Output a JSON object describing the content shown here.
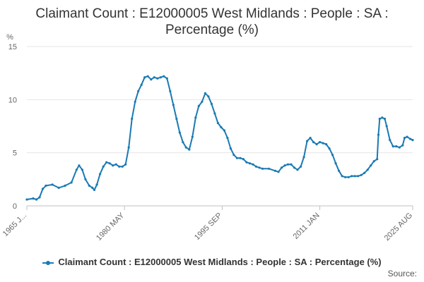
{
  "chart_data": {
    "type": "line",
    "title_line1": "Claimant Count : E12000005 West Midlands : People : SA :",
    "title_line2": "Percentage (%)",
    "ylabel": "%",
    "ylim": [
      0,
      15
    ],
    "yticks": [
      0,
      5,
      10,
      15
    ],
    "xticks": [
      "1965 J...",
      "1980 MAY",
      "1995 SEP",
      "2011 JAN",
      "2025 AUG"
    ],
    "xtick_years": [
      1965.0,
      1980.33,
      1995.67,
      2011.0,
      2025.58
    ],
    "xlim": [
      1965.0,
      2025.58
    ],
    "grid": true,
    "legend_position": "bottom",
    "series": [
      {
        "name": "Claimant Count : E12000005 West Midlands : People : SA : Percentage (%)",
        "color": "#1a7ab3",
        "points": [
          [
            1965.0,
            0.6
          ],
          [
            1966.0,
            0.7
          ],
          [
            1966.5,
            0.6
          ],
          [
            1967.0,
            0.8
          ],
          [
            1967.5,
            1.6
          ],
          [
            1968.0,
            1.9
          ],
          [
            1969.0,
            2.0
          ],
          [
            1970.0,
            1.7
          ],
          [
            1971.0,
            1.9
          ],
          [
            1972.0,
            2.2
          ],
          [
            1972.8,
            3.4
          ],
          [
            1973.2,
            3.8
          ],
          [
            1973.7,
            3.4
          ],
          [
            1974.2,
            2.5
          ],
          [
            1974.8,
            1.9
          ],
          [
            1975.3,
            1.7
          ],
          [
            1975.6,
            1.5
          ],
          [
            1976.0,
            2.0
          ],
          [
            1976.5,
            3.0
          ],
          [
            1977.0,
            3.7
          ],
          [
            1977.5,
            4.1
          ],
          [
            1978.0,
            4.0
          ],
          [
            1978.5,
            3.8
          ],
          [
            1979.0,
            3.9
          ],
          [
            1979.5,
            3.7
          ],
          [
            1980.0,
            3.7
          ],
          [
            1980.5,
            3.9
          ],
          [
            1981.0,
            5.5
          ],
          [
            1981.5,
            8.2
          ],
          [
            1982.0,
            9.8
          ],
          [
            1982.5,
            10.8
          ],
          [
            1983.0,
            11.4
          ],
          [
            1983.5,
            12.1
          ],
          [
            1984.0,
            12.2
          ],
          [
            1984.5,
            11.9
          ],
          [
            1985.0,
            12.1
          ],
          [
            1985.5,
            12.0
          ],
          [
            1986.0,
            12.1
          ],
          [
            1986.5,
            12.2
          ],
          [
            1987.0,
            12.0
          ],
          [
            1987.5,
            10.8
          ],
          [
            1988.0,
            9.5
          ],
          [
            1988.5,
            8.2
          ],
          [
            1989.0,
            6.9
          ],
          [
            1989.5,
            6.0
          ],
          [
            1990.0,
            5.5
          ],
          [
            1990.5,
            5.3
          ],
          [
            1991.0,
            6.5
          ],
          [
            1991.5,
            8.3
          ],
          [
            1992.0,
            9.4
          ],
          [
            1992.5,
            9.8
          ],
          [
            1993.0,
            10.6
          ],
          [
            1993.5,
            10.3
          ],
          [
            1994.0,
            9.6
          ],
          [
            1994.5,
            8.7
          ],
          [
            1995.0,
            7.8
          ],
          [
            1995.5,
            7.4
          ],
          [
            1996.0,
            7.1
          ],
          [
            1996.5,
            6.4
          ],
          [
            1997.0,
            5.4
          ],
          [
            1997.5,
            4.8
          ],
          [
            1998.0,
            4.5
          ],
          [
            1998.5,
            4.5
          ],
          [
            1999.0,
            4.4
          ],
          [
            1999.5,
            4.1
          ],
          [
            2000.0,
            4.0
          ],
          [
            2000.5,
            3.9
          ],
          [
            2001.0,
            3.7
          ],
          [
            2001.5,
            3.6
          ],
          [
            2002.0,
            3.5
          ],
          [
            2003.0,
            3.5
          ],
          [
            2004.0,
            3.3
          ],
          [
            2004.5,
            3.2
          ],
          [
            2005.0,
            3.6
          ],
          [
            2005.5,
            3.8
          ],
          [
            2006.0,
            3.9
          ],
          [
            2006.5,
            3.9
          ],
          [
            2007.0,
            3.6
          ],
          [
            2007.5,
            3.4
          ],
          [
            2008.0,
            3.7
          ],
          [
            2008.5,
            4.6
          ],
          [
            2009.0,
            6.1
          ],
          [
            2009.5,
            6.4
          ],
          [
            2010.0,
            6.0
          ],
          [
            2010.5,
            5.8
          ],
          [
            2011.0,
            6.0
          ],
          [
            2011.5,
            5.9
          ],
          [
            2012.0,
            5.8
          ],
          [
            2012.5,
            5.4
          ],
          [
            2013.0,
            4.8
          ],
          [
            2013.5,
            4.0
          ],
          [
            2014.0,
            3.3
          ],
          [
            2014.5,
            2.8
          ],
          [
            2015.0,
            2.7
          ],
          [
            2015.5,
            2.7
          ],
          [
            2016.0,
            2.8
          ],
          [
            2016.5,
            2.8
          ],
          [
            2017.0,
            2.8
          ],
          [
            2017.5,
            2.9
          ],
          [
            2018.0,
            3.1
          ],
          [
            2018.5,
            3.4
          ],
          [
            2019.0,
            3.8
          ],
          [
            2019.5,
            4.2
          ],
          [
            2020.0,
            4.4
          ],
          [
            2020.2,
            6.7
          ],
          [
            2020.4,
            8.2
          ],
          [
            2020.8,
            8.3
          ],
          [
            2021.2,
            8.2
          ],
          [
            2021.5,
            7.5
          ],
          [
            2022.0,
            6.2
          ],
          [
            2022.5,
            5.6
          ],
          [
            2023.0,
            5.6
          ],
          [
            2023.5,
            5.5
          ],
          [
            2024.0,
            5.7
          ],
          [
            2024.3,
            6.4
          ],
          [
            2024.7,
            6.5
          ],
          [
            2025.2,
            6.3
          ],
          [
            2025.58,
            6.2
          ]
        ]
      }
    ]
  },
  "legend": {
    "label": "Claimant Count : E12000005 West Midlands : People : SA : Percentage (%)"
  },
  "source": {
    "label": "Source:"
  }
}
